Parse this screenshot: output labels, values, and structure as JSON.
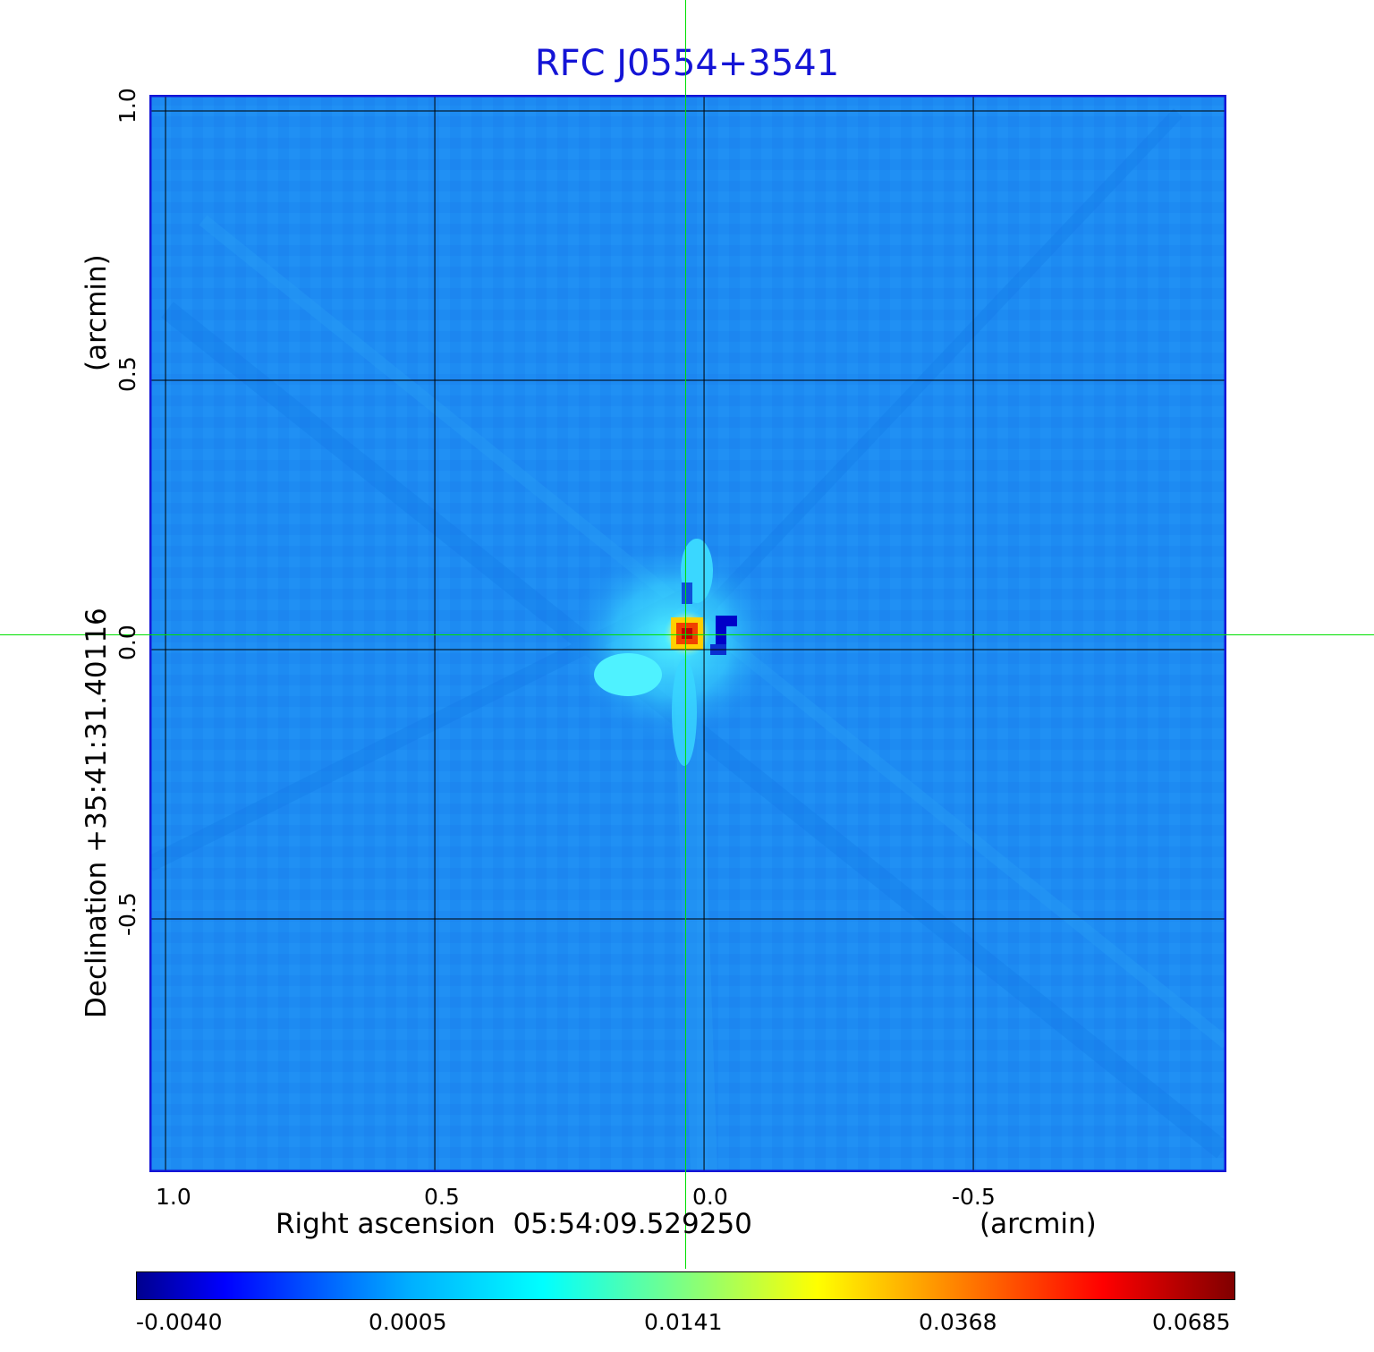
{
  "chart_data": {
    "type": "heatmap",
    "title": "RFC J0554+3541",
    "xlabel": "Right ascension  05:54:09.529250",
    "xlabel_unit": "(arcmin)",
    "ylabel": "Declination  +35:41:31.40116",
    "ylabel_unit": "(arcmin)",
    "x_ticks": [
      "1.0",
      "0.5",
      "0.0",
      "-0.5"
    ],
    "y_ticks": [
      "1.0",
      "0.5",
      "0.0",
      "-0.5"
    ],
    "xlim": [
      1.03,
      -0.97
    ],
    "ylim": [
      -0.97,
      1.03
    ],
    "grid": true,
    "crosshair": {
      "x": 0.03,
      "y": 0.02
    },
    "peak": {
      "x": 0.03,
      "y": 0.02,
      "value": 0.0685
    },
    "colorbar": {
      "ticks": [
        "-0.0040",
        "0.0005",
        "0.0141",
        "0.0368",
        "0.0685"
      ],
      "colormap": "jet"
    },
    "colors": {
      "title": "#1414d6",
      "frame": "#1414d6",
      "background_field": "#1d8bf2",
      "crosshair": "#00e000"
    }
  }
}
